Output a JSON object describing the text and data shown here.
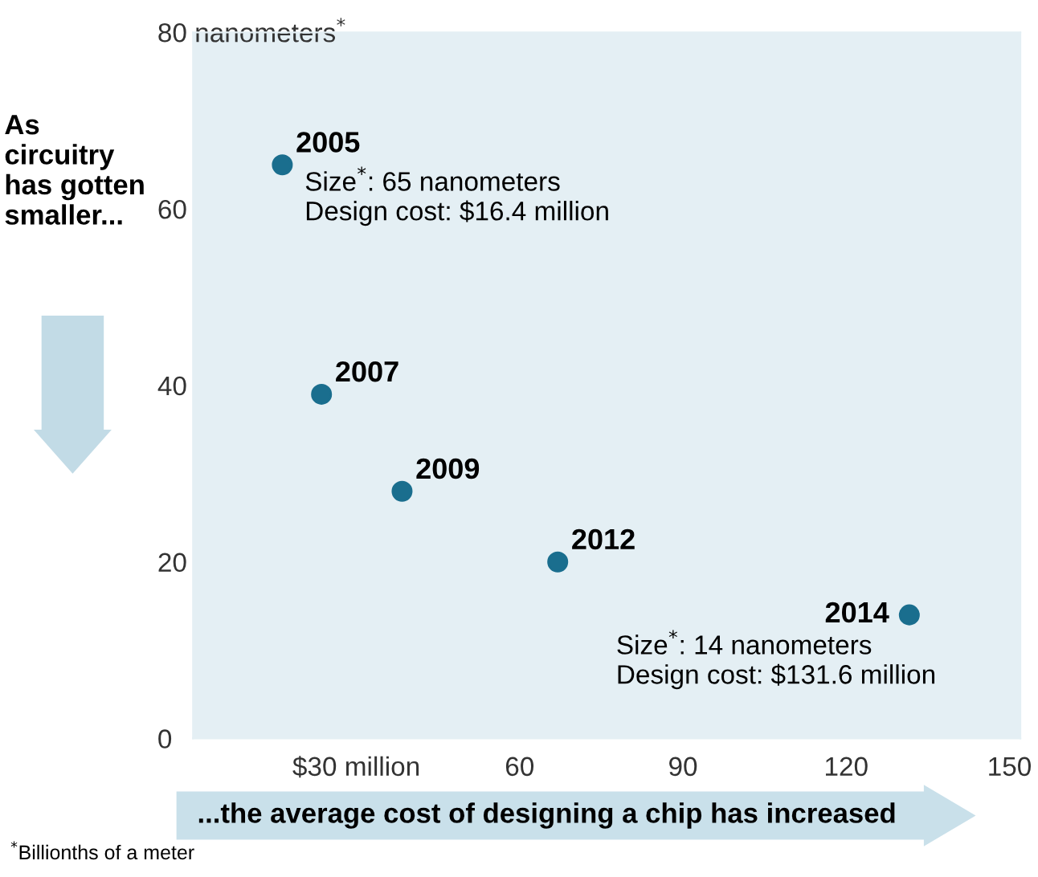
{
  "chart_data": {
    "type": "scatter",
    "x": [
      16.4,
      23.6,
      38.4,
      67.0,
      131.6
    ],
    "series": [
      {
        "color": "#1a6e8e",
        "values": [
          65,
          39,
          28,
          20,
          14
        ]
      }
    ],
    "xlim": [
      0,
      152
    ],
    "xticks": [
      {
        "value": 30,
        "label": "$30 million"
      },
      60,
      90,
      120,
      150
    ],
    "ylim": [
      0,
      80
    ],
    "yticks": [
      0,
      20,
      40,
      60,
      {
        "value": 80,
        "label": "80 nanometers$^{*}$"
      }
    ],
    "ylabel": "As circuitry has gotten smaller...",
    "xlabel": "...the average cost of designing a chip has increased",
    "grid": false,
    "marker": "circle",
    "annotations": [
      {
        "text": "2005",
        "x": 16.4,
        "y": 65
      },
      {
        "text": "Size$^{*}$: 65 nanometers\nDesign cost: $16.4 million",
        "x": 16.4,
        "y": 65
      },
      {
        "text": "2007",
        "x": 23.6,
        "y": 39
      },
      {
        "text": "2009",
        "x": 38.4,
        "y": 28
      },
      {
        "text": "2012",
        "x": 67.0,
        "y": 20
      },
      {
        "text": "2014",
        "x": 131.6,
        "y": 14
      },
      {
        "text": "Size$^{*}$: 14 nanometers\nDesign cost: $131.6 million",
        "x": 131.6,
        "y": 14
      },
      "$^{*}$Billionths of a meter"
    ]
  }
}
